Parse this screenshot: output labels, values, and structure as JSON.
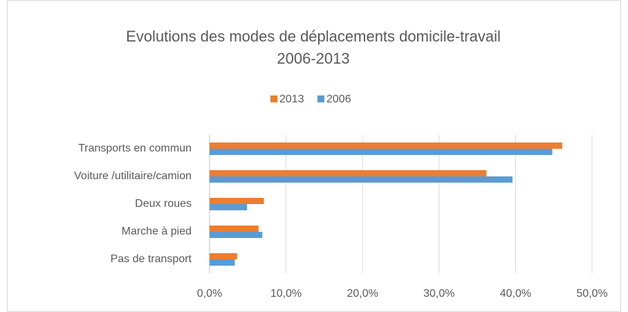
{
  "chart_data": {
    "type": "hbar",
    "title": [
      "Evolutions des modes de déplacements domicile-travail",
      "2006-2013"
    ],
    "categories": [
      "Transports en commun",
      "Voiture /utilitaire/camion",
      "Deux roues",
      "Marche à pied",
      "Pas de transport"
    ],
    "series": [
      {
        "name": "2013",
        "color": "#ed7d31",
        "values": [
          46.1,
          36.2,
          7.1,
          6.4,
          3.6
        ]
      },
      {
        "name": "2006",
        "color": "#5b9bd5",
        "values": [
          44.8,
          39.6,
          4.9,
          6.9,
          3.3
        ]
      }
    ],
    "xlim": [
      0,
      50
    ],
    "xticks": [
      {
        "value": 0,
        "label": "0,0%"
      },
      {
        "value": 10,
        "label": "10,0%"
      },
      {
        "value": 20,
        "label": "20,0%"
      },
      {
        "value": 30,
        "label": "30,0%"
      },
      {
        "value": 40,
        "label": "40,0%"
      },
      {
        "value": 50,
        "label": "50,0%"
      }
    ],
    "grid": true,
    "legend": "top"
  }
}
